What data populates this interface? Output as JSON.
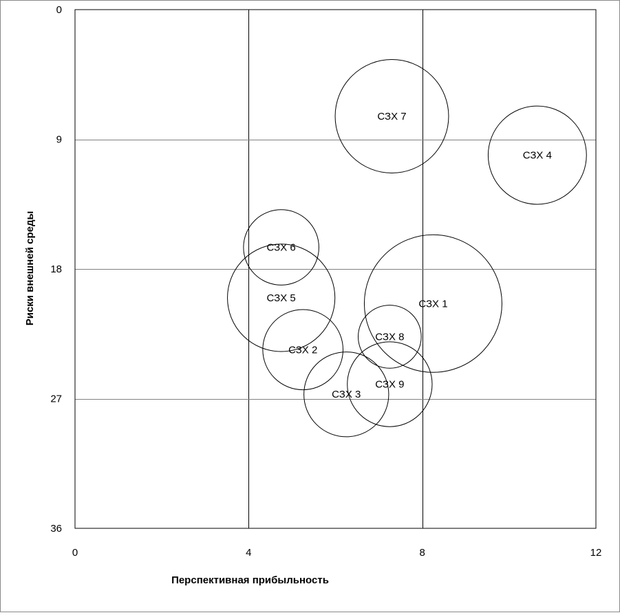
{
  "chart_data": {
    "type": "bubble",
    "xlabel": "Перспективная прибыльность",
    "ylabel": "Риски внешней среды",
    "xlim": [
      0,
      12
    ],
    "ylim": [
      0,
      36
    ],
    "y_axis_inverted": true,
    "x_ticks": [
      0,
      4,
      8,
      12
    ],
    "y_ticks": [
      0,
      9,
      18,
      27,
      36
    ],
    "x_tick_labels": [
      "0",
      "4",
      "8",
      "12"
    ],
    "y_tick_labels": [
      "0",
      "9",
      "18",
      "27",
      "36"
    ],
    "grid": {
      "vertical_major": true,
      "horizontal_major": true
    },
    "legend": "none",
    "points": [
      {
        "label": "СЗХ 1",
        "x": 8.25,
        "y": 20.4,
        "size": 100
      },
      {
        "label": "СЗХ 2",
        "x": 5.25,
        "y": 23.6,
        "size": 34
      },
      {
        "label": "СЗХ 3",
        "x": 6.25,
        "y": 26.7,
        "size": 38
      },
      {
        "label": "СЗХ 4",
        "x": 10.65,
        "y": 10.1,
        "size": 51
      },
      {
        "label": "СЗХ 5",
        "x": 4.75,
        "y": 20.0,
        "size": 61
      },
      {
        "label": "СЗХ 6",
        "x": 4.75,
        "y": 16.5,
        "size": 30
      },
      {
        "label": "СЗХ 7",
        "x": 7.3,
        "y": 7.4,
        "size": 68
      },
      {
        "label": "СЗХ 8",
        "x": 7.25,
        "y": 22.7,
        "size": 21
      },
      {
        "label": "СЗХ 9",
        "x": 7.25,
        "y": 26.0,
        "size": 38
      }
    ],
    "colors": {
      "bubble_stroke": "#000000",
      "bubble_fill": "#ffffff",
      "vertical_grid": "#000000",
      "horizontal_grid": "#808080",
      "plot_border": "#000000"
    }
  }
}
